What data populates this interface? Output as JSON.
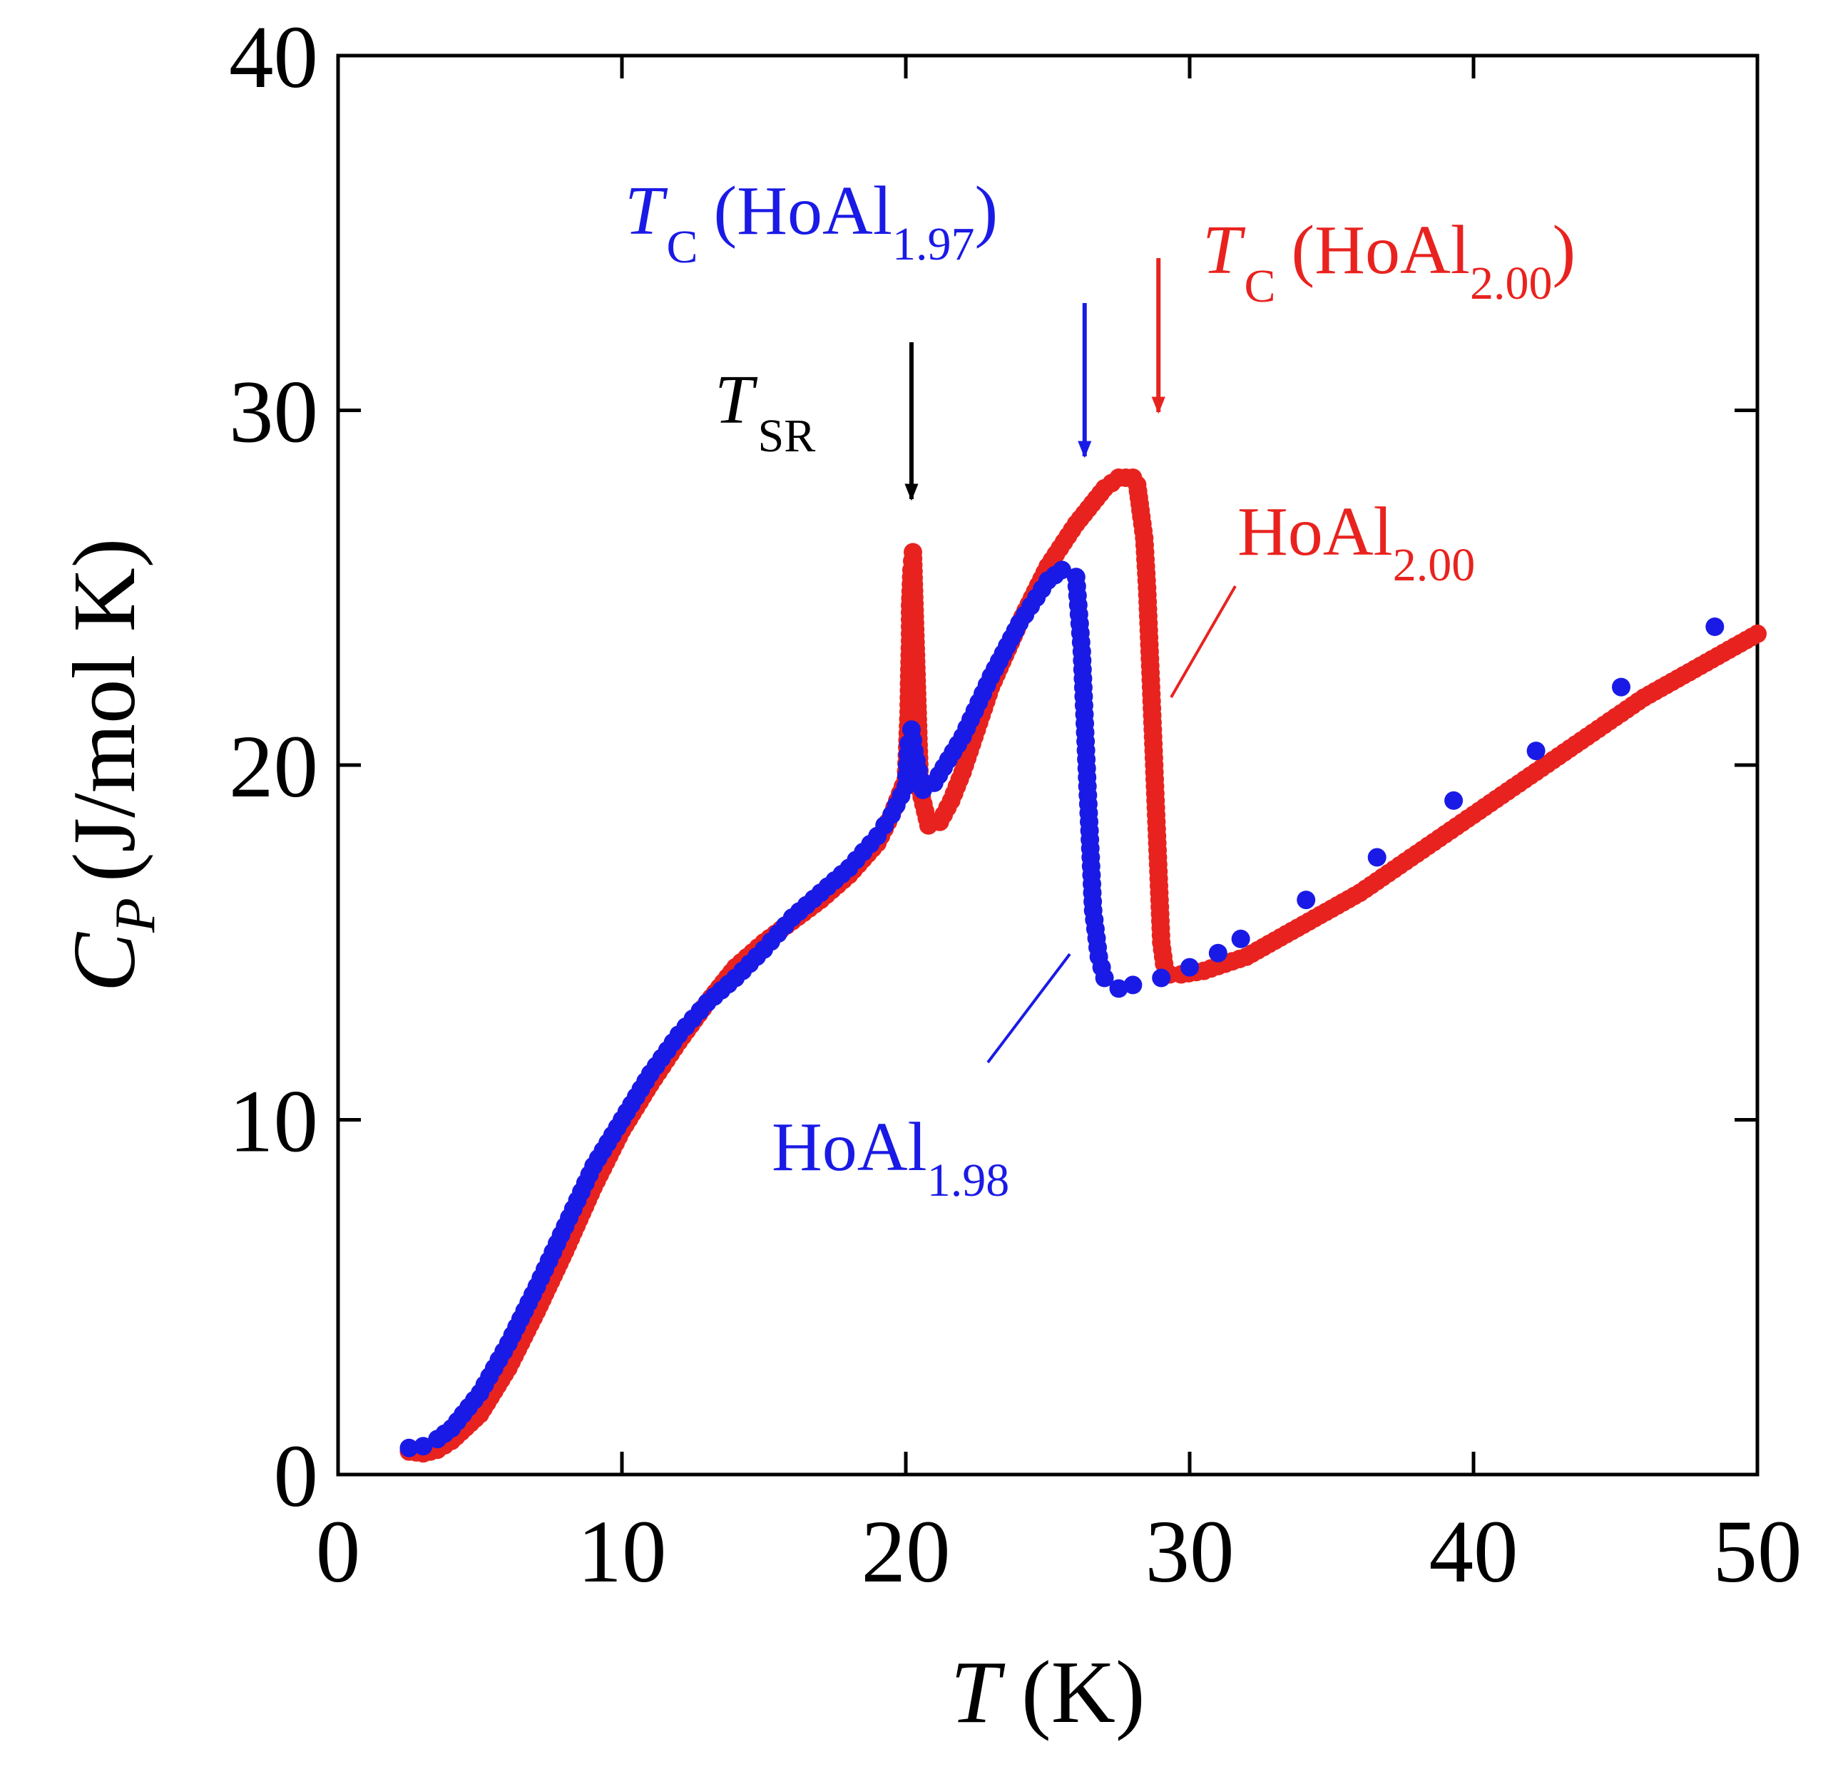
{
  "chart_data": {
    "type": "scatter",
    "title": "",
    "xlabel": "T (K)",
    "ylabel": "C_P (J/mol K)",
    "x_axis": {
      "symbol": "T",
      "unit": "(K)",
      "range": [
        0,
        50
      ],
      "ticks": [
        0,
        10,
        20,
        30,
        40,
        50
      ]
    },
    "y_axis": {
      "symbol": "C",
      "symbol_sub": "P",
      "unit": "(J/mol K)",
      "range": [
        0,
        40
      ],
      "ticks": [
        0,
        10,
        20,
        30,
        40
      ]
    },
    "grid": false,
    "series": [
      {
        "name": "HoAl2.00",
        "color": "#e8231f",
        "density": "dense",
        "points": [
          [
            2.5,
            0.65
          ],
          [
            3,
            0.6
          ],
          [
            3.5,
            0.7
          ],
          [
            4,
            0.95
          ],
          [
            5,
            1.7
          ],
          [
            6,
            3.0
          ],
          [
            7,
            4.6
          ],
          [
            8,
            6.3
          ],
          [
            9,
            8.1
          ],
          [
            10,
            9.7
          ],
          [
            11,
            11.0
          ],
          [
            12,
            12.2
          ],
          [
            13,
            13.3
          ],
          [
            14,
            14.3
          ],
          [
            15,
            15.0
          ],
          [
            16,
            15.6
          ],
          [
            17,
            16.2
          ],
          [
            18,
            16.9
          ],
          [
            19,
            17.8
          ],
          [
            19.5,
            18.6
          ],
          [
            20,
            19.6
          ],
          [
            20.05,
            20.5
          ],
          [
            20.1,
            21.5
          ],
          [
            20.12,
            22.5
          ],
          [
            20.15,
            23.5
          ],
          [
            20.15,
            24.5
          ],
          [
            20.2,
            25.5
          ],
          [
            20.25,
            26.0
          ],
          [
            20.5,
            19.3
          ],
          [
            20.8,
            18.3
          ],
          [
            21.2,
            18.4
          ],
          [
            21.6,
            19.0
          ],
          [
            22,
            19.8
          ],
          [
            22.5,
            21.0
          ],
          [
            23,
            22.2
          ],
          [
            24,
            24.0
          ],
          [
            25,
            25.6
          ],
          [
            26,
            26.8
          ],
          [
            27,
            27.8
          ],
          [
            27.5,
            28.1
          ],
          [
            28,
            28.1
          ],
          [
            28.15,
            27.9
          ],
          [
            28.3,
            27.0
          ],
          [
            28.4,
            26.4
          ],
          [
            28.5,
            25.0
          ],
          [
            28.55,
            24.0
          ],
          [
            28.6,
            23.0
          ],
          [
            28.65,
            22.0
          ],
          [
            28.7,
            21.0
          ],
          [
            28.75,
            20.0
          ],
          [
            28.8,
            19.0
          ],
          [
            28.85,
            18.0
          ],
          [
            28.9,
            17.0
          ],
          [
            28.95,
            16.0
          ],
          [
            29,
            15.0
          ],
          [
            29.1,
            14.4
          ],
          [
            29.3,
            14.1
          ],
          [
            29.7,
            14.1
          ],
          [
            30.5,
            14.2
          ],
          [
            32,
            14.6
          ],
          [
            34,
            15.5
          ],
          [
            36,
            16.4
          ],
          [
            38,
            17.5
          ],
          [
            40,
            18.6
          ],
          [
            42,
            19.7
          ],
          [
            44,
            20.8
          ],
          [
            46,
            21.9
          ],
          [
            48,
            22.8
          ],
          [
            50,
            23.7
          ]
        ]
      },
      {
        "name": "HoAl1.98",
        "color": "#1a1ae6",
        "density": "dense-below-27K",
        "points": [
          [
            2.5,
            0.75
          ],
          [
            3,
            0.8
          ],
          [
            3.5,
            1.0
          ],
          [
            4,
            1.3
          ],
          [
            5,
            2.3
          ],
          [
            6,
            3.7
          ],
          [
            7,
            5.3
          ],
          [
            8,
            7.0
          ],
          [
            9,
            8.7
          ],
          [
            10,
            10.0
          ],
          [
            11,
            11.3
          ],
          [
            12,
            12.4
          ],
          [
            13,
            13.3
          ],
          [
            14,
            14.0
          ],
          [
            15,
            14.8
          ],
          [
            16,
            15.7
          ],
          [
            17,
            16.4
          ],
          [
            18,
            17.1
          ],
          [
            19,
            18.0
          ],
          [
            19.5,
            18.6
          ],
          [
            20,
            19.4
          ],
          [
            20.1,
            20.6
          ],
          [
            20.2,
            21.0
          ],
          [
            20.3,
            20.4
          ],
          [
            20.6,
            19.3
          ],
          [
            21,
            19.5
          ],
          [
            22,
            20.8
          ],
          [
            23,
            22.5
          ],
          [
            24,
            24.0
          ],
          [
            25,
            25.2
          ],
          [
            25.5,
            25.5
          ],
          [
            26,
            25.3
          ],
          [
            26.2,
            23.2
          ],
          [
            26.4,
            19.4
          ],
          [
            26.6,
            15.9
          ],
          [
            26.8,
            14.6
          ],
          [
            27,
            14.0
          ],
          [
            27.5,
            13.7
          ],
          [
            28,
            13.8
          ],
          [
            29,
            14.0
          ],
          [
            30,
            14.3
          ],
          [
            31,
            14.7
          ],
          [
            31.8,
            15.1
          ],
          [
            34.1,
            16.2
          ],
          [
            36.6,
            17.4
          ],
          [
            39.3,
            19.0
          ],
          [
            42.2,
            20.4
          ],
          [
            45.2,
            22.2
          ],
          [
            48.5,
            23.9
          ]
        ]
      }
    ],
    "annotations": [
      {
        "id": "tsr",
        "main": "T",
        "sub": "SR",
        "color": "#000000",
        "arrow_x": 20.2
      },
      {
        "id": "tc197",
        "main": "T",
        "sub": "C",
        "paren_open": "(HoAl",
        "paren_sub": "1.97",
        "paren_close": ")",
        "color": "#1a1ae6",
        "arrow_x": 26.3
      },
      {
        "id": "tc200",
        "main": "T",
        "sub": "C",
        "paren_open": "(HoAl",
        "paren_sub": "2.00",
        "paren_close": ")",
        "color": "#e8231f",
        "arrow_x": 28.9
      }
    ],
    "series_labels": [
      {
        "id": "lbl200",
        "text": "HoAl",
        "sub": "2.00",
        "color": "#e8231f"
      },
      {
        "id": "lbl198",
        "text": "HoAl",
        "sub": "1.98",
        "color": "#1a1ae6"
      }
    ]
  }
}
